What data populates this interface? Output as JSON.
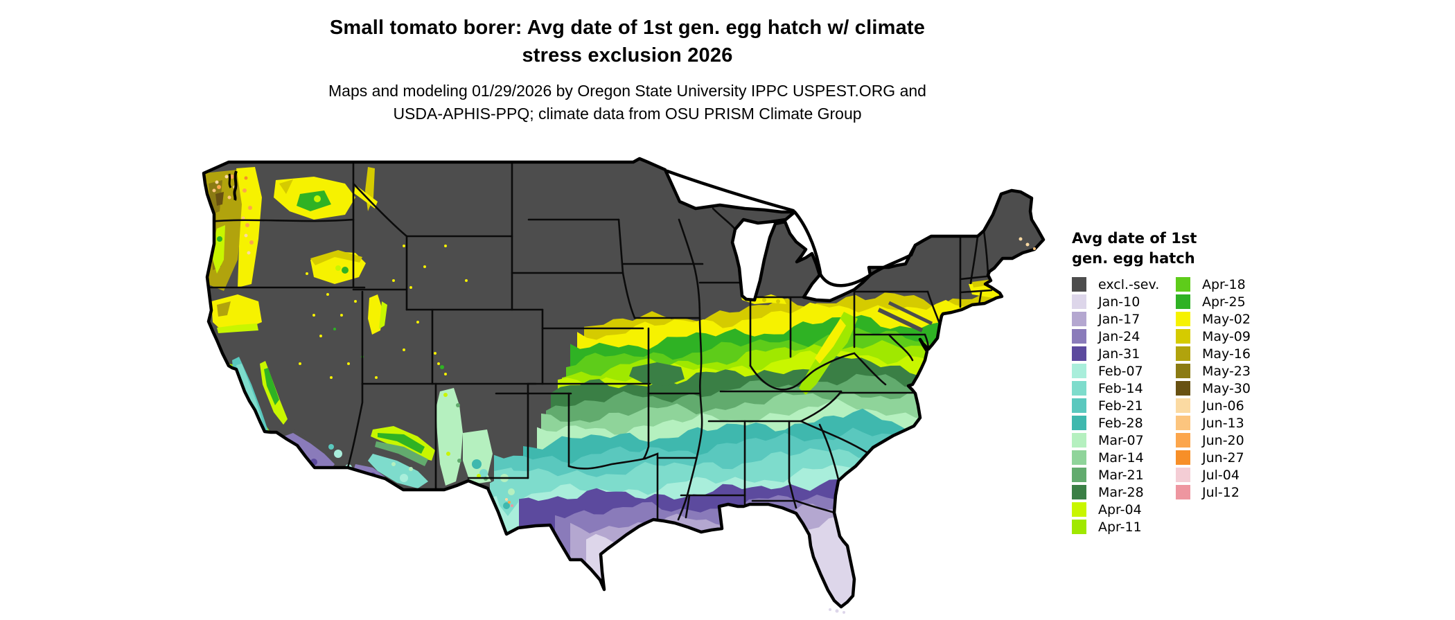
{
  "title": {
    "line1": "Small tomato borer: Avg date of 1st gen. egg hatch w/ climate",
    "line2": "stress exclusion 2026"
  },
  "subtitle": {
    "line1": "Maps and modeling 01/29/2026 by Oregon State University IPPC USPEST.ORG and",
    "line2": "USDA-APHIS-PPQ; climate data from OSU PRISM Climate Group"
  },
  "legend": {
    "title_line1": "Avg date of 1st",
    "title_line2": "gen. egg hatch",
    "columns": [
      [
        {
          "label": "excl.-sev.",
          "color": "#4D4D4D"
        },
        {
          "label": "Jan-10",
          "color": "#DDD6EA"
        },
        {
          "label": "Jan-17",
          "color": "#B4A7D0"
        },
        {
          "label": "Jan-24",
          "color": "#8A7BBA"
        },
        {
          "label": "Jan-31",
          "color": "#5C4A9E"
        },
        {
          "label": "Feb-07",
          "color": "#A9EEDB"
        },
        {
          "label": "Feb-14",
          "color": "#7EDCCC"
        },
        {
          "label": "Feb-21",
          "color": "#5AC8BE"
        },
        {
          "label": "Feb-28",
          "color": "#3FB8AE"
        },
        {
          "label": "Mar-07",
          "color": "#B5F0BF"
        },
        {
          "label": "Mar-14",
          "color": "#8FD49A"
        },
        {
          "label": "Mar-21",
          "color": "#62AB6E"
        },
        {
          "label": "Mar-28",
          "color": "#3A7F45"
        },
        {
          "label": "Apr-04",
          "color": "#C8F600"
        },
        {
          "label": "Apr-11",
          "color": "#A0E800"
        }
      ],
      [
        {
          "label": "Apr-18",
          "color": "#5ECC1A"
        },
        {
          "label": "Apr-25",
          "color": "#2FB224"
        },
        {
          "label": "May-02",
          "color": "#F6F200"
        },
        {
          "label": "May-09",
          "color": "#D5CB00"
        },
        {
          "label": "May-16",
          "color": "#B1A30D"
        },
        {
          "label": "May-23",
          "color": "#8B7B13"
        },
        {
          "label": "May-30",
          "color": "#685112"
        },
        {
          "label": "Jun-06",
          "color": "#FBDAA2"
        },
        {
          "label": "Jun-13",
          "color": "#FCC57E"
        },
        {
          "label": "Jun-20",
          "color": "#FCA64C"
        },
        {
          "label": "Jun-27",
          "color": "#F78F28"
        },
        {
          "label": "Jul-04",
          "color": "#F4CDD5"
        },
        {
          "label": "Jul-12",
          "color": "#EE96A0"
        }
      ]
    ]
  },
  "map": {
    "region": "Continental United States",
    "background_color": "#FFFFFF",
    "state_border_color": "#000000",
    "excluded_color": "#4D4D4D",
    "excluded_label": "excl.-sev.",
    "regions_summary": [
      {
        "area": "Gulf Coast, Florida peninsula, south Texas",
        "hatch_dates": "Jan-10 to Jan-24"
      },
      {
        "area": "Deep South from central Texas to coastal Carolinas",
        "hatch_dates": "Jan-31 to Feb-28"
      },
      {
        "area": "Mid-South: Oklahoma, Arkansas, Tennessee, interior Carolinas",
        "hatch_dates": "Mar-07 to Mar-28"
      },
      {
        "area": "Lower Midwest and Mid-Atlantic belt (Kansas to Virginia)",
        "hatch_dates": "Apr-04 to Apr-25"
      },
      {
        "area": "Ohio Valley, southern Great Lakes, coastal New England",
        "hatch_dates": "May-02 to May-16"
      },
      {
        "area": "Pacific Northwest west of the Cascades",
        "hatch_dates": "May-02 to May-30, Jun-06 to Jun-27 in mountains"
      },
      {
        "area": "California Central Valley, coast and southern California",
        "hatch_dates": "Jan-10 to Feb-28 in valleys, Mar to May in foothills"
      },
      {
        "area": "Northern Plains, upper Midwest, northern New England and interior mountain West",
        "hatch_dates": "excluded - severe climate stress"
      }
    ]
  }
}
